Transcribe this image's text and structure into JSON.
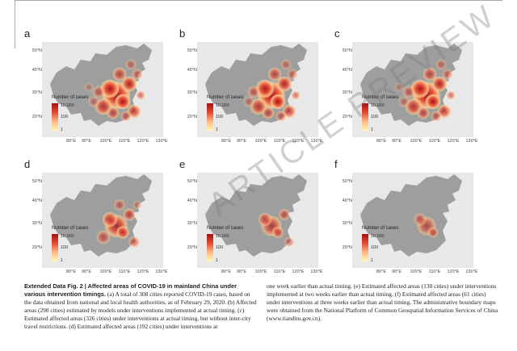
{
  "panels": [
    {
      "letter": "a",
      "intensity": 1.0
    },
    {
      "letter": "b",
      "intensity": 0.95
    },
    {
      "letter": "c",
      "intensity": 0.97
    },
    {
      "letter": "d",
      "intensity": 0.55
    },
    {
      "letter": "e",
      "intensity": 0.35
    },
    {
      "letter": "f",
      "intensity": 0.2
    }
  ],
  "map": {
    "lat_ticks": [
      "50°N",
      "40°N",
      "30°N",
      "20°N"
    ],
    "lon_ticks": [
      "80°E",
      "90°E",
      "100°E",
      "110°E",
      "120°E",
      "130°E"
    ],
    "legend": {
      "title": "Number of cases",
      "labels": [
        "10,000",
        "100",
        "1"
      ],
      "colors": [
        "#a50f15",
        "#e34a33",
        "#fdbb84",
        "#fff7bc"
      ]
    },
    "base_color": "#9e9e9e",
    "background": "#e8e8e8"
  },
  "caption": {
    "heading": "Extended Data Fig. 2 | Affected areas of COVID-19 in mainland China under various intervention timings.",
    "col1_rest": "(a) A total of 308 cities reported COVID-19 cases, based on the data obtained from national and local health authorities, as of February 29, 2020. (b) Affected areas (298 cities) estimated by models under interventions implemented at actual timing. (c) Estimated affected areas (326 cities) under interventions at actual timing, but without inter-city travel restrictions. (d) Estimated affected areas (192 cities) under interventions at",
    "col2": "one week earlier than actual timing. (e) Estimated affected areas (130 cities) under interventions implemented at two weeks earlier than actual timing. (f) Estimated affected areas (61 cities) under interventions at three weeks earlier than actual timing. The administrative boundary maps were obtained from the National Platform of Common Geospatial Information Services of China (www.tianditu.gov.cn)."
  },
  "watermark": "ARTICLE PREVIEW"
}
